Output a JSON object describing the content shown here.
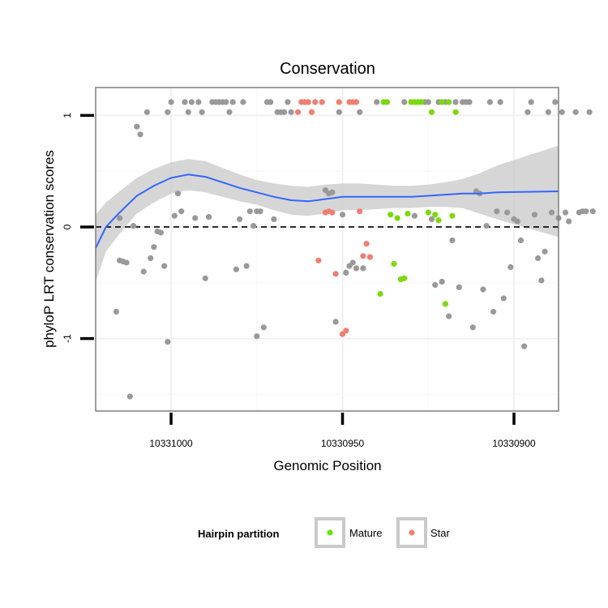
{
  "chart_data": {
    "type": "scatter",
    "title": "Conservation",
    "xlabel": "Genomic Position",
    "ylabel": "phyloP LRT conservation scores",
    "x_reversed": true,
    "xlim": [
      10331022,
      10330887
    ],
    "ylim": [
      -1.65,
      1.25
    ],
    "x_ticks": [
      10331000,
      10330950,
      10330900
    ],
    "x_tick_labels": [
      "10331000",
      "10330950",
      "10330900"
    ],
    "y_ticks": [
      -1,
      0,
      1
    ],
    "y_tick_labels": [
      "-1",
      "0",
      "1"
    ],
    "grid": true,
    "reference_line": {
      "y": 0,
      "style": "dashed"
    },
    "legend": {
      "title": "Hairpin partition",
      "position": "bottom",
      "entries": [
        {
          "label": "Mature",
          "color": "#66e312"
        },
        {
          "label": "Star",
          "color": "#f08070"
        }
      ]
    },
    "colors": {
      "other": "#999999",
      "mature": "#7cd80f",
      "star": "#f07f73",
      "smooth": "#3366ff",
      "band": "#cccccc"
    },
    "series": [
      {
        "group": "other",
        "points": [
          [
            10331016,
            -0.76
          ],
          [
            10331015,
            0.08
          ],
          [
            10331015,
            -0.3
          ],
          [
            10331014,
            -0.31
          ],
          [
            10331013,
            -0.32
          ],
          [
            10331012,
            -1.52
          ],
          [
            10331011,
            0.01
          ],
          [
            10331010,
            0.9
          ],
          [
            10331009,
            0.83
          ],
          [
            10331008,
            -0.4
          ],
          [
            10331007,
            1.03
          ],
          [
            10331006,
            -0.28
          ],
          [
            10331005,
            -0.18
          ],
          [
            10331004,
            -0.04
          ],
          [
            10331003,
            -0.05
          ],
          [
            10331002,
            -0.35
          ],
          [
            10331001,
            -1.03
          ],
          [
            10331001,
            1.03
          ],
          [
            10331000,
            1.12
          ],
          [
            10330999,
            0.1
          ],
          [
            10330998,
            0.3
          ],
          [
            10330997,
            0.14
          ],
          [
            10330996,
            1.12
          ],
          [
            10330995,
            1.03
          ],
          [
            10330994,
            1.12
          ],
          [
            10330993,
            0.08
          ],
          [
            10330992,
            1.12
          ],
          [
            10330991,
            1.03
          ],
          [
            10330990,
            -0.46
          ],
          [
            10330989,
            0.09
          ],
          [
            10330988,
            1.12
          ],
          [
            10330987,
            1.12
          ],
          [
            10330986,
            1.12
          ],
          [
            10330985,
            1.12
          ],
          [
            10330984,
            1.12
          ],
          [
            10330983,
            1.03
          ],
          [
            10330982,
            1.12
          ],
          [
            10330981,
            -0.38
          ],
          [
            10330980,
            0.07
          ],
          [
            10330979,
            1.12
          ],
          [
            10330978,
            -0.35
          ],
          [
            10330977,
            0.14
          ],
          [
            10330976,
            0.01
          ],
          [
            10330975,
            -0.98
          ],
          [
            10330975,
            0.14
          ],
          [
            10330974,
            0.14
          ],
          [
            10330973,
            -0.9
          ],
          [
            10330972,
            1.12
          ],
          [
            10330971,
            1.12
          ],
          [
            10330970,
            0.07
          ],
          [
            10330969,
            1.03
          ],
          [
            10330968,
            1.03
          ],
          [
            10330967,
            1.03
          ],
          [
            10330966,
            1.12
          ],
          [
            10330965,
            1.03
          ],
          [
            10330955,
            0.33
          ],
          [
            10330954,
            0.3
          ],
          [
            10330953,
            0.31
          ],
          [
            10330952,
            -0.85
          ],
          [
            10330951,
            1.03
          ],
          [
            10330950,
            0.11
          ],
          [
            10330949,
            -0.41
          ],
          [
            10330948,
            -0.35
          ],
          [
            10330947,
            -0.32
          ],
          [
            10330946,
            -0.37
          ],
          [
            10330945,
            1.03
          ],
          [
            10330944,
            -0.37
          ],
          [
            10330940,
            1.12
          ],
          [
            10330932,
            1.12
          ],
          [
            10330929,
            0.1
          ],
          [
            10330926,
            1.12
          ],
          [
            10330925,
            1.12
          ],
          [
            10330924,
            0.07
          ],
          [
            10330923,
            -0.52
          ],
          [
            10330922,
            1.12
          ],
          [
            10330921,
            -0.49
          ],
          [
            10330920,
            1.12
          ],
          [
            10330919,
            -0.8
          ],
          [
            10330918,
            -0.12
          ],
          [
            10330917,
            1.12
          ],
          [
            10330916,
            -0.54
          ],
          [
            10330915,
            1.12
          ],
          [
            10330914,
            1.12
          ],
          [
            10330913,
            1.12
          ],
          [
            10330912,
            -0.9
          ],
          [
            10330911,
            0.32
          ],
          [
            10330910,
            0.3
          ],
          [
            10330909,
            -0.56
          ],
          [
            10330908,
            0.01
          ],
          [
            10330907,
            1.12
          ],
          [
            10330906,
            -0.76
          ],
          [
            10330905,
            0.14
          ],
          [
            10330904,
            1.12
          ],
          [
            10330903,
            -0.64
          ],
          [
            10330902,
            0.13
          ],
          [
            10330901,
            -0.36
          ],
          [
            10330900,
            0.07
          ],
          [
            10330899,
            0.05
          ],
          [
            10330898,
            -0.12
          ],
          [
            10330897,
            -1.07
          ],
          [
            10330896,
            1.03
          ],
          [
            10330895,
            1.12
          ],
          [
            10330894,
            0.11
          ],
          [
            10330893,
            -0.28
          ],
          [
            10330892,
            -0.48
          ],
          [
            10330891,
            -0.22
          ],
          [
            10330890,
            1.03
          ],
          [
            10330889,
            0.13
          ],
          [
            10330888,
            1.12
          ],
          [
            10330887,
            0.08
          ],
          [
            10330886,
            1.03
          ],
          [
            10330885,
            0.13
          ],
          [
            10330884,
            0.05
          ],
          [
            10330882,
            1.03
          ],
          [
            10330881,
            0.13
          ],
          [
            10330880,
            0.14
          ],
          [
            10330879,
            0.14
          ],
          [
            10330878,
            1.03
          ],
          [
            10330877,
            0.14
          ]
        ]
      },
      {
        "group": "mature",
        "points": [
          [
            10330938,
            1.12
          ],
          [
            10330937,
            1.12
          ],
          [
            10330936,
            0.11
          ],
          [
            10330935,
            -0.33
          ],
          [
            10330934,
            0.08
          ],
          [
            10330933,
            -0.47
          ],
          [
            10330932,
            -0.46
          ],
          [
            10330931,
            0.12
          ],
          [
            10330930,
            1.12
          ],
          [
            10330929,
            1.12
          ],
          [
            10330928,
            1.12
          ],
          [
            10330927,
            1.12
          ],
          [
            10330925,
            0.13
          ],
          [
            10330924,
            1.03
          ],
          [
            10330923,
            0.11
          ],
          [
            10330922,
            0.06
          ],
          [
            10330921,
            1.12
          ],
          [
            10330920,
            -0.69
          ],
          [
            10330919,
            1.12
          ],
          [
            10330918,
            0.1
          ],
          [
            10330917,
            1.03
          ],
          [
            10330939,
            -0.6
          ]
        ]
      },
      {
        "group": "star",
        "points": [
          [
            10330963,
            1.03
          ],
          [
            10330962,
            1.12
          ],
          [
            10330961,
            1.12
          ],
          [
            10330960,
            1.12
          ],
          [
            10330959,
            1.03
          ],
          [
            10330958,
            1.12
          ],
          [
            10330957,
            -0.3
          ],
          [
            10330956,
            1.12
          ],
          [
            10330955,
            0.13
          ],
          [
            10330954,
            0.14
          ],
          [
            10330953,
            0.13
          ],
          [
            10330952,
            -0.42
          ],
          [
            10330951,
            1.12
          ],
          [
            10330950,
            -0.96
          ],
          [
            10330949,
            -0.93
          ],
          [
            10330948,
            1.12
          ],
          [
            10330947,
            1.12
          ],
          [
            10330946,
            1.12
          ],
          [
            10330945,
            0.14
          ],
          [
            10330944,
            -0.26
          ],
          [
            10330943,
            -0.15
          ],
          [
            10330942,
            -0.27
          ]
        ]
      }
    ],
    "smooth_curve": [
      [
        10331022,
        -0.19
      ],
      [
        10331019,
        0.0
      ],
      [
        10331015,
        0.13
      ],
      [
        10331010,
        0.28
      ],
      [
        10331005,
        0.37
      ],
      [
        10331000,
        0.44
      ],
      [
        10330995,
        0.47
      ],
      [
        10330990,
        0.45
      ],
      [
        10330985,
        0.4
      ],
      [
        10330980,
        0.35
      ],
      [
        10330975,
        0.31
      ],
      [
        10330970,
        0.27
      ],
      [
        10330965,
        0.24
      ],
      [
        10330960,
        0.23
      ],
      [
        10330955,
        0.25
      ],
      [
        10330950,
        0.27
      ],
      [
        10330945,
        0.27
      ],
      [
        10330940,
        0.27
      ],
      [
        10330935,
        0.27
      ],
      [
        10330930,
        0.27
      ],
      [
        10330925,
        0.28
      ],
      [
        10330920,
        0.29
      ],
      [
        10330915,
        0.3
      ],
      [
        10330910,
        0.3
      ],
      [
        10330905,
        0.31
      ],
      [
        10330887,
        0.32
      ]
    ],
    "smooth_band": [
      [
        10331022,
        0.11,
        -0.49
      ],
      [
        10331019,
        0.22,
        -0.22
      ],
      [
        10331015,
        0.32,
        -0.06
      ],
      [
        10331010,
        0.44,
        0.12
      ],
      [
        10331005,
        0.52,
        0.22
      ],
      [
        10331000,
        0.58,
        0.3
      ],
      [
        10330995,
        0.61,
        0.33
      ],
      [
        10330990,
        0.59,
        0.31
      ],
      [
        10330985,
        0.53,
        0.27
      ],
      [
        10330980,
        0.47,
        0.23
      ],
      [
        10330975,
        0.42,
        0.2
      ],
      [
        10330970,
        0.39,
        0.15
      ],
      [
        10330965,
        0.37,
        0.11
      ],
      [
        10330960,
        0.36,
        0.1
      ],
      [
        10330955,
        0.38,
        0.12
      ],
      [
        10330950,
        0.39,
        0.15
      ],
      [
        10330945,
        0.39,
        0.15
      ],
      [
        10330940,
        0.38,
        0.16
      ],
      [
        10330935,
        0.37,
        0.17
      ],
      [
        10330930,
        0.37,
        0.17
      ],
      [
        10330925,
        0.38,
        0.18
      ],
      [
        10330920,
        0.4,
        0.18
      ],
      [
        10330915,
        0.43,
        0.17
      ],
      [
        10330910,
        0.48,
        0.12
      ],
      [
        10330905,
        0.55,
        0.07
      ],
      [
        10330887,
        0.73,
        -0.09
      ]
    ]
  }
}
